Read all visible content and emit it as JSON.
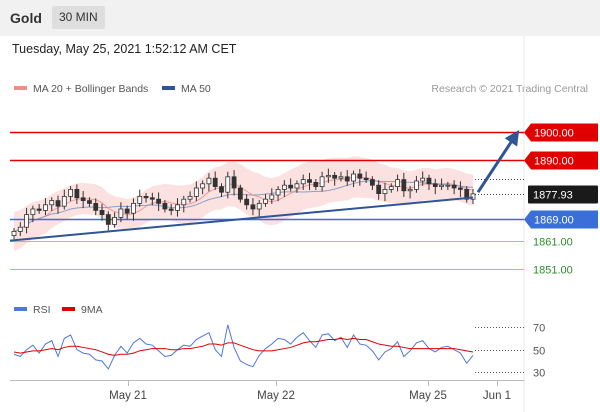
{
  "header": {
    "title": "Gold",
    "timeframe": "30 MIN"
  },
  "datetime": "Tuesday, May 25, 2021 1:52:12 AM CET",
  "legend": {
    "items": [
      {
        "label": "MA 20 + Bollinger Bands",
        "color": "#f08c8c"
      },
      {
        "label": "MA 50",
        "color": "#2f5597"
      }
    ],
    "credit": "Research © 2021 Trading Central"
  },
  "chart_data": {
    "type": "candlestick",
    "price_ylim": [
      1845,
      1910
    ],
    "horizontal_levels": [
      {
        "value": 1900.0,
        "label": "1900.00",
        "kind": "resistance",
        "color": "#e00000"
      },
      {
        "value": 1890.0,
        "label": "1890.00",
        "kind": "resistance",
        "color": "#e00000"
      },
      {
        "value": 1877.93,
        "label": "1877.93",
        "kind": "last-price",
        "color": "#1a1a1a"
      },
      {
        "value": 1869.0,
        "label": "1869.00",
        "kind": "pivot",
        "color": "#3a6fd8"
      },
      {
        "value": 1861.0,
        "label": "1861.00",
        "kind": "support",
        "color": "#2e8b2e"
      },
      {
        "value": 1851.0,
        "label": "1851.00",
        "kind": "support",
        "color": "#2e8b2e"
      }
    ],
    "x_ticks": [
      "May 21",
      "May 22",
      "May 25",
      "Jun 1"
    ],
    "trendline": {
      "start": 1861.2,
      "end": 1876.6,
      "color": "#2f5597"
    },
    "arrow": {
      "from": 1878.5,
      "to": 1898.5,
      "color": "#2f5597"
    },
    "close_series": [
      1864.5,
      1866,
      1870.5,
      1872.5,
      1872,
      1874,
      1875.5,
      1873.5,
      1877,
      1879.5,
      1876.5,
      1875.5,
      1874.5,
      1872,
      1870.5,
      1867,
      1869.5,
      1872.5,
      1871,
      1874.5,
      1877,
      1876.5,
      1876,
      1874.5,
      1872.5,
      1872,
      1874,
      1876,
      1877,
      1880,
      1881.5,
      1883.5,
      1880.5,
      1878.5,
      1884,
      1880,
      1876,
      1874,
      1872.5,
      1874.5,
      1876,
      1877.5,
      1879.5,
      1881,
      1880,
      1881.5,
      1883,
      1882,
      1880.5,
      1884,
      1884.5,
      1883.5,
      1884,
      1882.5,
      1885,
      1883.5,
      1883,
      1881,
      1878,
      1879.5,
      1880.5,
      1883,
      1879,
      1879.5,
      1882.5,
      1883.5,
      1881.5,
      1880.5,
      1881,
      1881,
      1880,
      1879.5,
      1876,
      1877.9
    ],
    "rsi": {
      "ylim": [
        25,
        78
      ],
      "ticks": [
        70,
        50,
        30
      ],
      "series": [
        {
          "name": "RSI",
          "color": "#4f78d8",
          "values": [
            46,
            44,
            50,
            54,
            47,
            55,
            58,
            44,
            60,
            63,
            50,
            47,
            46,
            41,
            40,
            33,
            45,
            53,
            47,
            56,
            60,
            55,
            54,
            49,
            44,
            45,
            50,
            54,
            53,
            59,
            62,
            65,
            50,
            44,
            72,
            52,
            40,
            37,
            35,
            45,
            51,
            55,
            60,
            59,
            55,
            61,
            65,
            58,
            52,
            63,
            64,
            58,
            61,
            52,
            63,
            55,
            54,
            49,
            41,
            48,
            51,
            57,
            44,
            49,
            56,
            58,
            51,
            48,
            52,
            53,
            50,
            47,
            38,
            45
          ]
        },
        {
          "name": "9MA",
          "color": "#e00000",
          "values": [
            48,
            47,
            48,
            49,
            49,
            50,
            51,
            50,
            52,
            53,
            53,
            52,
            51,
            50,
            48,
            46,
            45,
            46,
            46,
            47,
            49,
            50,
            51,
            51,
            51,
            50,
            50,
            51,
            51,
            52,
            53,
            55,
            55,
            54,
            56,
            56,
            54,
            52,
            50,
            49,
            49,
            49,
            50,
            51,
            52,
            54,
            56,
            57,
            57,
            58,
            59,
            59,
            60,
            59,
            60,
            59,
            59,
            57,
            55,
            54,
            53,
            53,
            52,
            51,
            51,
            51,
            51,
            51,
            51,
            51,
            51,
            50,
            49,
            48
          ]
        }
      ]
    }
  }
}
